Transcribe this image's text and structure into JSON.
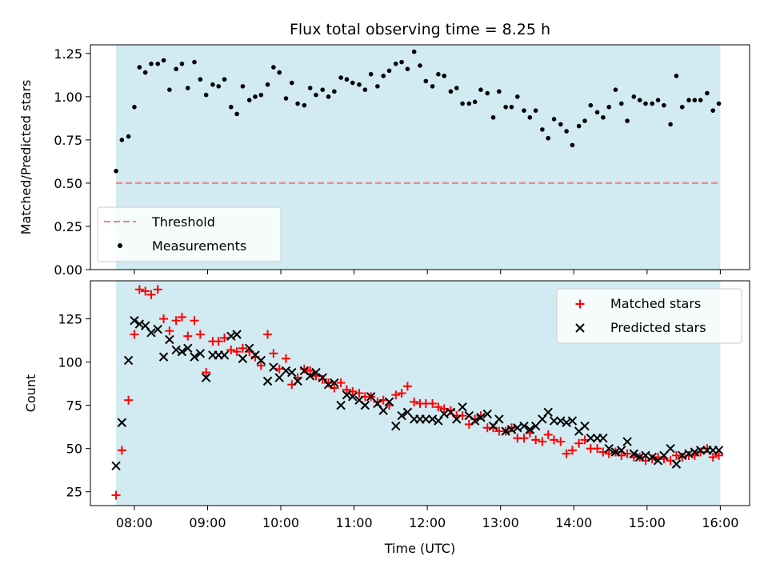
{
  "colors": {
    "background": "#ffffff",
    "observing_span": "#add8e6",
    "threshold": "#f08080",
    "measurements": "#000000",
    "matched": "#ff0000",
    "predicted": "#000000",
    "axes": "#000000"
  },
  "chart_data": [
    {
      "type": "scatter",
      "title": "Flux total observing time = 8.25 h",
      "xlabel": "",
      "ylabel": "Matched/Predicted stars",
      "x_unit": "hours UTC",
      "xlim": [
        7.4,
        16.4
      ],
      "ylim": [
        0.0,
        1.3
      ],
      "yticks": [
        0.0,
        0.25,
        0.5,
        0.75,
        1.0,
        1.25
      ],
      "ytick_labels": [
        "0.00",
        "0.25",
        "0.50",
        "0.75",
        "1.00",
        "1.25"
      ],
      "observing_span": [
        7.75,
        16.0
      ],
      "threshold": {
        "name": "Threshold",
        "y": 0.5,
        "x_range": [
          7.75,
          16.0
        ],
        "style": "dashed"
      },
      "legend": {
        "location": "lower-left",
        "entries": [
          "Threshold",
          "Measurements"
        ]
      },
      "grid": false,
      "series": [
        {
          "name": "Measurements",
          "marker": "dot",
          "x": [
            7.75,
            7.83,
            7.92,
            8.0,
            8.07,
            8.15,
            8.23,
            8.32,
            8.4,
            8.48,
            8.57,
            8.65,
            8.73,
            8.82,
            8.9,
            8.98,
            9.07,
            9.15,
            9.23,
            9.32,
            9.4,
            9.48,
            9.57,
            9.65,
            9.73,
            9.82,
            9.9,
            9.98,
            10.07,
            10.15,
            10.23,
            10.32,
            10.4,
            10.48,
            10.57,
            10.65,
            10.73,
            10.82,
            10.9,
            10.98,
            11.07,
            11.15,
            11.23,
            11.32,
            11.4,
            11.48,
            11.57,
            11.65,
            11.73,
            11.82,
            11.9,
            11.98,
            12.07,
            12.15,
            12.23,
            12.32,
            12.4,
            12.48,
            12.57,
            12.65,
            12.73,
            12.82,
            12.9,
            12.98,
            13.07,
            13.15,
            13.23,
            13.32,
            13.4,
            13.48,
            13.57,
            13.65,
            13.73,
            13.82,
            13.9,
            13.98,
            14.07,
            14.15,
            14.23,
            14.32,
            14.4,
            14.48,
            14.57,
            14.65,
            14.73,
            14.82,
            14.9,
            14.98,
            15.07,
            15.15,
            15.23,
            15.32,
            15.4,
            15.48,
            15.57,
            15.65,
            15.73,
            15.82,
            15.9,
            15.98
          ],
          "y": [
            0.57,
            0.75,
            0.77,
            0.94,
            1.17,
            1.14,
            1.19,
            1.19,
            1.21,
            1.04,
            1.16,
            1.19,
            1.05,
            1.2,
            1.1,
            1.01,
            1.07,
            1.06,
            1.1,
            0.94,
            0.9,
            1.06,
            0.98,
            1.0,
            1.01,
            1.07,
            1.17,
            1.14,
            0.99,
            1.08,
            0.96,
            0.95,
            1.05,
            1.01,
            1.04,
            1.0,
            1.03,
            1.11,
            1.1,
            1.08,
            1.07,
            1.04,
            1.13,
            1.06,
            1.12,
            1.15,
            1.19,
            1.2,
            1.16,
            1.26,
            1.18,
            1.09,
            1.06,
            1.13,
            1.12,
            1.03,
            1.05,
            0.96,
            0.96,
            0.97,
            1.04,
            1.02,
            0.88,
            1.03,
            0.94,
            0.94,
            1.0,
            0.92,
            0.88,
            0.92,
            0.81,
            0.76,
            0.87,
            0.84,
            0.8,
            0.72,
            0.83,
            0.86,
            0.95,
            0.91,
            0.88,
            0.94,
            1.04,
            0.96,
            0.86,
            1.0,
            0.98,
            0.96,
            0.96,
            0.98,
            0.95,
            0.84,
            1.12,
            0.94,
            0.98,
            0.98,
            0.98,
            1.02,
            0.92,
            0.96
          ]
        }
      ]
    },
    {
      "type": "scatter",
      "title": "",
      "xlabel": "Time (UTC)",
      "ylabel": "Count",
      "x_unit": "hours UTC",
      "xlim": [
        7.4,
        16.4
      ],
      "ylim": [
        17,
        147
      ],
      "xticks": [
        8,
        9,
        10,
        11,
        12,
        13,
        14,
        15,
        16
      ],
      "xtick_labels": [
        "08:00",
        "09:00",
        "10:00",
        "11:00",
        "12:00",
        "13:00",
        "14:00",
        "15:00",
        "16:00"
      ],
      "yticks": [
        25,
        50,
        75,
        100,
        125
      ],
      "ytick_labels": [
        "25",
        "50",
        "75",
        "100",
        "125"
      ],
      "observing_span": [
        7.75,
        16.0
      ],
      "legend": {
        "location": "top-right",
        "entries": [
          "Matched stars",
          "Predicted stars"
        ]
      },
      "grid": false,
      "series": [
        {
          "name": "Matched stars",
          "marker": "plus",
          "x": [
            7.75,
            7.83,
            7.92,
            8.0,
            8.07,
            8.15,
            8.23,
            8.32,
            8.4,
            8.48,
            8.57,
            8.65,
            8.73,
            8.82,
            8.9,
            8.98,
            9.07,
            9.15,
            9.23,
            9.32,
            9.4,
            9.48,
            9.57,
            9.65,
            9.73,
            9.82,
            9.9,
            9.98,
            10.07,
            10.15,
            10.23,
            10.32,
            10.4,
            10.48,
            10.57,
            10.65,
            10.73,
            10.82,
            10.9,
            10.98,
            11.07,
            11.15,
            11.23,
            11.32,
            11.4,
            11.48,
            11.57,
            11.65,
            11.73,
            11.82,
            11.9,
            11.98,
            12.07,
            12.15,
            12.23,
            12.32,
            12.4,
            12.48,
            12.57,
            12.65,
            12.73,
            12.82,
            12.9,
            12.98,
            13.07,
            13.15,
            13.23,
            13.32,
            13.4,
            13.48,
            13.57,
            13.65,
            13.73,
            13.82,
            13.9,
            13.98,
            14.07,
            14.15,
            14.23,
            14.32,
            14.4,
            14.48,
            14.57,
            14.65,
            14.73,
            14.82,
            14.9,
            14.98,
            15.07,
            15.15,
            15.23,
            15.32,
            15.4,
            15.48,
            15.57,
            15.65,
            15.73,
            15.82,
            15.9,
            15.98
          ],
          "y": [
            23,
            49,
            78,
            116,
            142,
            141,
            139,
            142,
            125,
            118,
            124,
            126,
            115,
            124,
            116,
            94,
            112,
            112,
            114,
            107,
            106,
            108,
            106,
            103,
            98,
            116,
            105,
            96,
            102,
            87,
            91,
            96,
            95,
            92,
            90,
            88,
            85,
            88,
            84,
            83,
            82,
            80,
            80,
            77,
            78,
            75,
            81,
            82,
            86,
            77,
            76,
            76,
            76,
            74,
            73,
            72,
            69,
            69,
            64,
            67,
            69,
            62,
            62,
            60,
            60,
            62,
            56,
            56,
            59,
            55,
            54,
            58,
            55,
            54,
            47,
            49,
            53,
            55,
            50,
            50,
            48,
            47,
            48,
            46,
            47,
            45,
            45,
            43,
            44,
            45,
            44,
            43,
            46,
            45,
            46,
            46,
            48,
            50,
            45,
            46
          ]
        },
        {
          "name": "Predicted stars",
          "marker": "x",
          "x": [
            7.75,
            7.83,
            7.92,
            8.0,
            8.07,
            8.15,
            8.23,
            8.32,
            8.4,
            8.48,
            8.57,
            8.65,
            8.73,
            8.82,
            8.9,
            8.98,
            9.07,
            9.15,
            9.23,
            9.32,
            9.4,
            9.48,
            9.57,
            9.65,
            9.73,
            9.82,
            9.9,
            9.98,
            10.07,
            10.15,
            10.23,
            10.32,
            10.4,
            10.48,
            10.57,
            10.65,
            10.73,
            10.82,
            10.9,
            10.98,
            11.07,
            11.15,
            11.23,
            11.32,
            11.4,
            11.48,
            11.57,
            11.65,
            11.73,
            11.82,
            11.9,
            11.98,
            12.07,
            12.15,
            12.23,
            12.32,
            12.4,
            12.48,
            12.57,
            12.65,
            12.73,
            12.82,
            12.9,
            12.98,
            13.07,
            13.15,
            13.23,
            13.32,
            13.4,
            13.48,
            13.57,
            13.65,
            13.73,
            13.82,
            13.9,
            13.98,
            14.07,
            14.15,
            14.23,
            14.32,
            14.4,
            14.48,
            14.57,
            14.65,
            14.73,
            14.82,
            14.9,
            14.98,
            15.07,
            15.15,
            15.23,
            15.32,
            15.4,
            15.48,
            15.57,
            15.65,
            15.73,
            15.82,
            15.9,
            15.98
          ],
          "y": [
            40,
            65,
            101,
            124,
            122,
            121,
            117,
            119,
            103,
            113,
            107,
            106,
            108,
            103,
            105,
            91,
            104,
            104,
            104,
            115,
            116,
            102,
            108,
            104,
            101,
            89,
            97,
            91,
            95,
            94,
            89,
            95,
            92,
            94,
            91,
            87,
            88,
            75,
            81,
            80,
            78,
            75,
            80,
            76,
            72,
            77,
            63,
            69,
            71,
            67,
            67,
            67,
            67,
            66,
            70,
            71,
            67,
            74,
            69,
            66,
            68,
            70,
            63,
            67,
            60,
            61,
            62,
            63,
            61,
            63,
            67,
            71,
            66,
            66,
            65,
            66,
            60,
            63,
            56,
            56,
            56,
            50,
            48,
            49,
            54,
            47,
            45,
            46,
            45,
            43,
            46,
            50,
            41,
            46,
            47,
            48,
            49,
            49,
            49,
            49
          ]
        }
      ]
    }
  ]
}
